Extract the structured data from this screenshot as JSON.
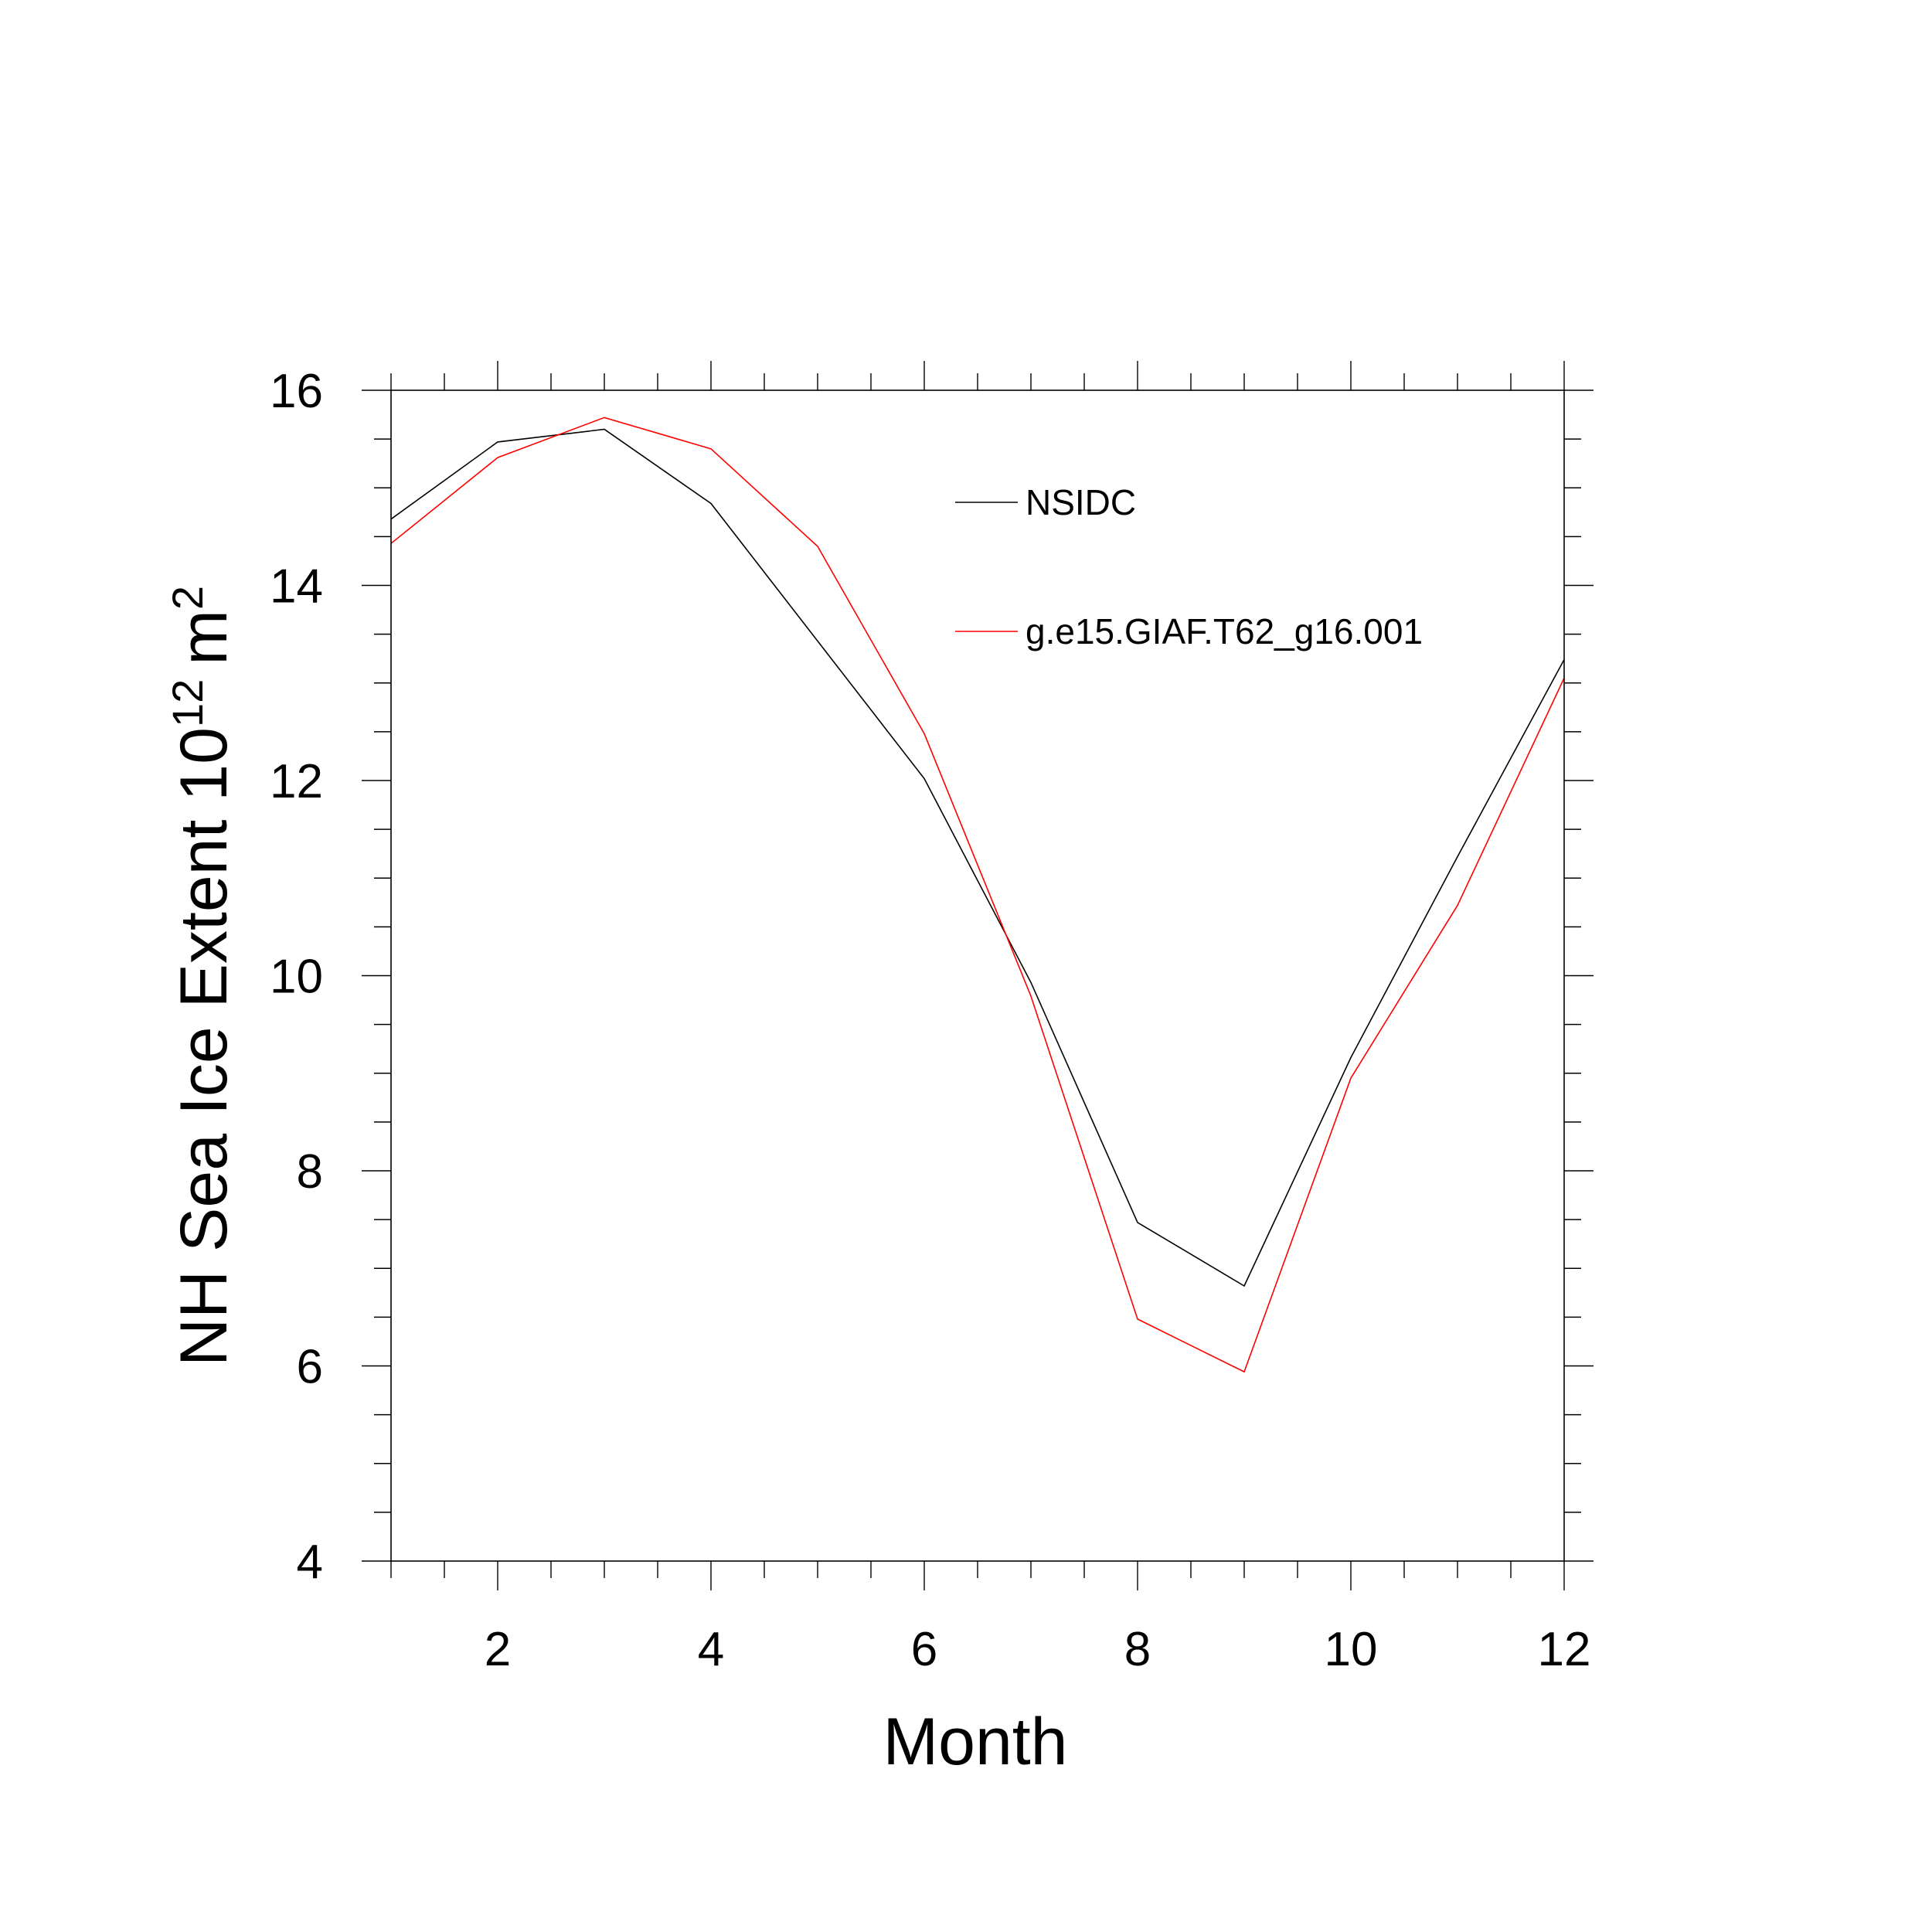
{
  "chart_data": {
    "type": "line",
    "xlabel": "Month",
    "ylabel": {
      "prefix": "NH Sea Ice Extent 10",
      "superscript": "12",
      "unit": "m",
      "unit_superscript": "2"
    },
    "xlim": [
      1,
      12
    ],
    "ylim": [
      4,
      16
    ],
    "x_major_ticks": [
      2,
      4,
      6,
      8,
      10,
      12
    ],
    "y_major_ticks": [
      4,
      6,
      8,
      10,
      12,
      14,
      16
    ],
    "x_minor_step": 0.5,
    "y_minor_step": 0.5,
    "grid": false,
    "legend_placement": "top-right inside",
    "x": [
      1,
      2,
      3,
      4,
      5,
      6,
      7,
      8,
      9,
      10,
      11,
      12
    ],
    "series": [
      {
        "name": "NSIDC",
        "color": "#000000",
        "values": [
          14.68,
          15.47,
          15.6,
          14.84,
          13.43,
          12.02,
          9.93,
          7.47,
          6.82,
          9.16,
          11.22,
          13.24
        ]
      },
      {
        "name": "g.e15.GIAF.T62_g16.001",
        "color": "#ff0000",
        "values": [
          14.43,
          15.31,
          15.72,
          15.4,
          14.4,
          12.48,
          9.79,
          6.48,
          5.94,
          8.95,
          10.72,
          13.05
        ]
      }
    ]
  }
}
